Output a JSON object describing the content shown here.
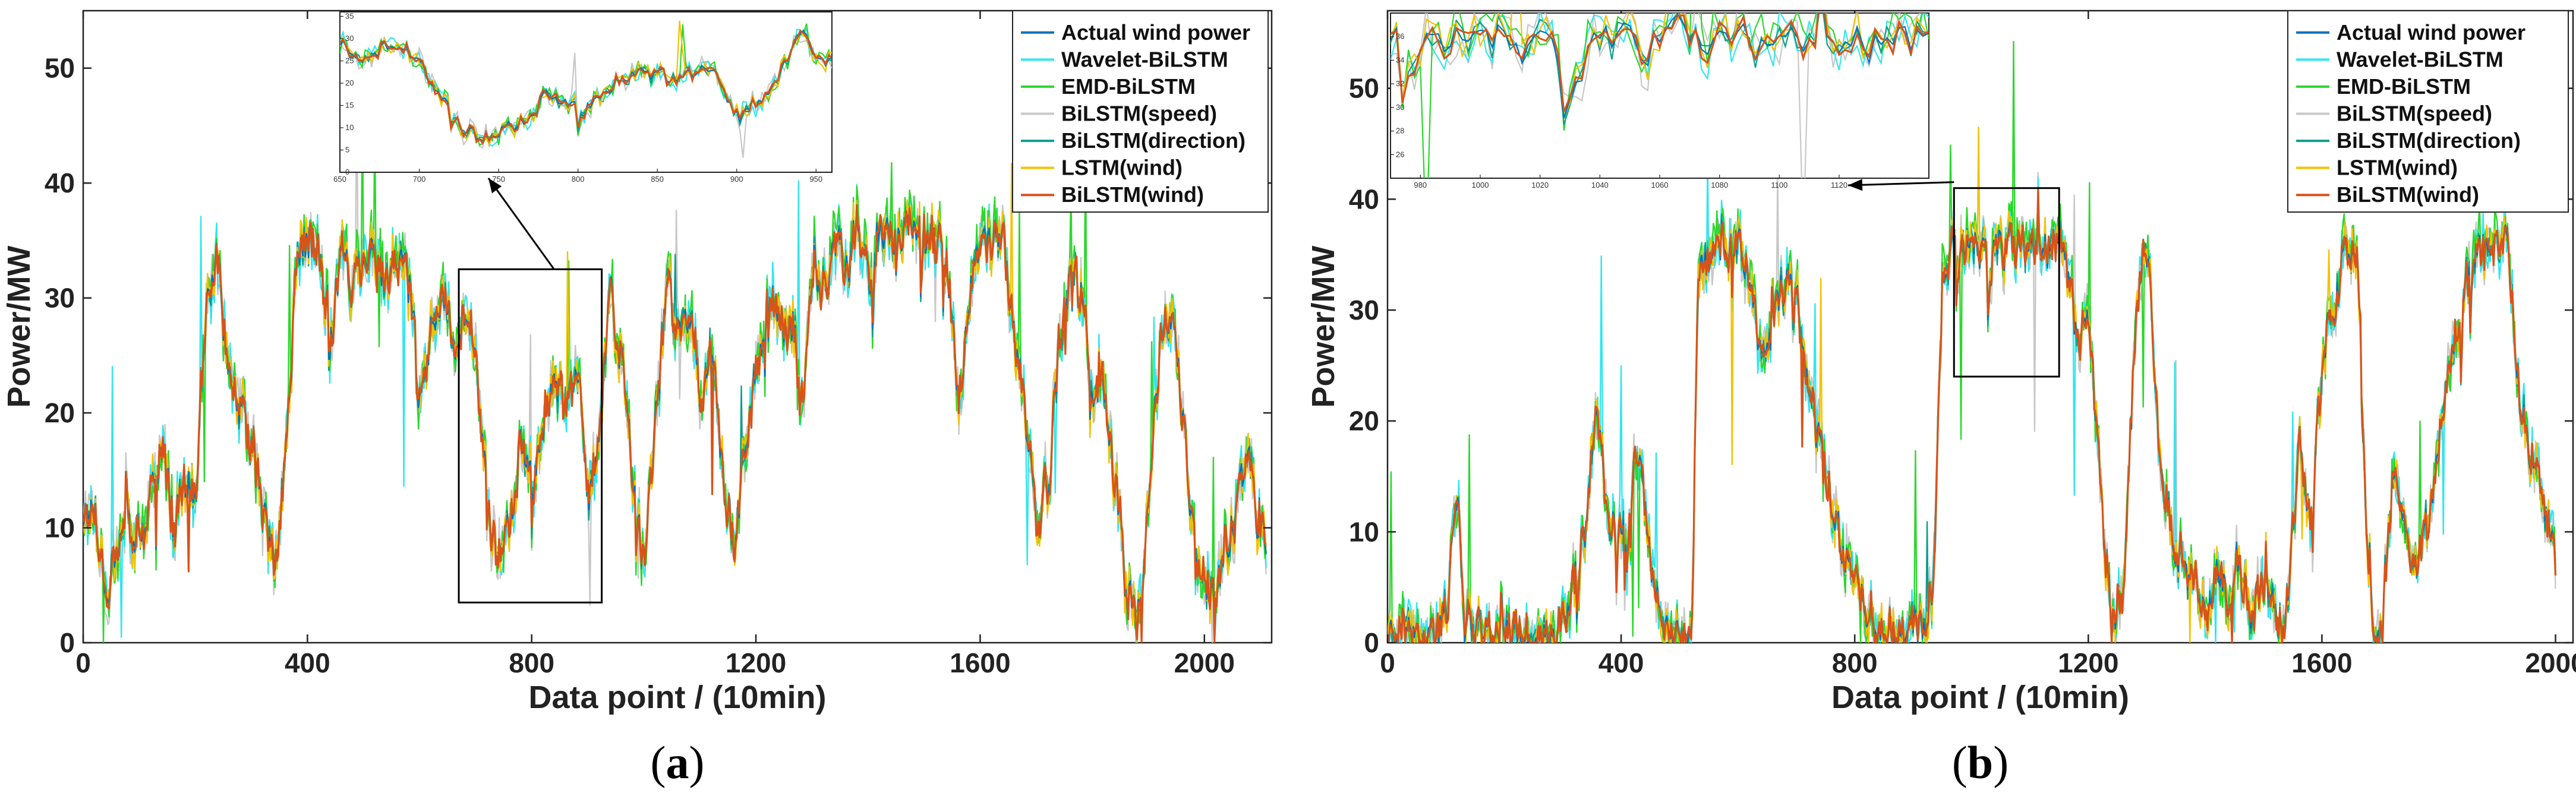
{
  "chart_data": [
    {
      "id": "a",
      "type": "line",
      "panel_label": "(a)",
      "panel_letter": "a",
      "xlabel": "Data point / (10min)",
      "ylabel": "Power/MW",
      "xlim": [
        0,
        2120
      ],
      "ylim": [
        0,
        55
      ],
      "xticks": [
        0,
        400,
        800,
        1200,
        1600,
        2000
      ],
      "yticks": [
        0,
        10,
        20,
        30,
        40,
        50
      ],
      "legend_position": "top-right",
      "zoom_box": {
        "x": [
          670,
          925
        ],
        "y": [
          3.5,
          32.5
        ]
      },
      "inset": {
        "xlim": [
          650,
          960
        ],
        "ylim": [
          0,
          36
        ],
        "xticks": [
          650,
          700,
          750,
          800,
          850,
          900,
          950
        ],
        "yticks": [
          0,
          5,
          10,
          15,
          20,
          25,
          30,
          35
        ]
      },
      "series": [
        {
          "name": "Actual wind power",
          "color": "#0072BD"
        },
        {
          "name": "Wavelet-BiLSTM",
          "color": "#33E5F0"
        },
        {
          "name": "EMD-BiLSTM",
          "color": "#2BD82B"
        },
        {
          "name": "BiLSTM(speed)",
          "color": "#C8C8C8"
        },
        {
          "name": "BiLSTM(direction)",
          "color": "#0C9F8C"
        },
        {
          "name": "LSTM(wind)",
          "color": "#F2C200"
        },
        {
          "name": "BiLSTM(wind)",
          "color": "#D95319"
        }
      ],
      "actual_profile": [
        [
          0,
          11
        ],
        [
          20,
          12
        ],
        [
          40,
          4
        ],
        [
          60,
          9
        ],
        [
          80,
          10
        ],
        [
          100,
          8
        ],
        [
          120,
          13
        ],
        [
          140,
          18
        ],
        [
          160,
          9
        ],
        [
          180,
          16
        ],
        [
          200,
          11
        ],
        [
          220,
          30
        ],
        [
          240,
          34
        ],
        [
          260,
          22
        ],
        [
          280,
          20
        ],
        [
          300,
          17
        ],
        [
          320,
          11
        ],
        [
          340,
          6
        ],
        [
          360,
          16
        ],
        [
          380,
          34
        ],
        [
          400,
          35
        ],
        [
          420,
          34
        ],
        [
          440,
          27
        ],
        [
          460,
          34
        ],
        [
          480,
          31
        ],
        [
          500,
          35
        ],
        [
          520,
          33
        ],
        [
          540,
          30
        ],
        [
          560,
          34
        ],
        [
          580,
          33
        ],
        [
          600,
          20
        ],
        [
          620,
          27
        ],
        [
          640,
          32
        ],
        [
          660,
          24
        ],
        [
          680,
          29
        ],
        [
          700,
          24
        ],
        [
          720,
          12
        ],
        [
          740,
          7
        ],
        [
          760,
          11
        ],
        [
          780,
          17
        ],
        [
          800,
          13
        ],
        [
          820,
          20
        ],
        [
          840,
          23
        ],
        [
          860,
          20
        ],
        [
          880,
          24
        ],
        [
          900,
          12
        ],
        [
          920,
          19
        ],
        [
          940,
          30
        ],
        [
          960,
          24
        ],
        [
          980,
          14
        ],
        [
          1000,
          7
        ],
        [
          1020,
          19
        ],
        [
          1040,
          32
        ],
        [
          1060,
          26
        ],
        [
          1080,
          29
        ],
        [
          1100,
          22
        ],
        [
          1120,
          26
        ],
        [
          1140,
          14
        ],
        [
          1160,
          9
        ],
        [
          1180,
          16
        ],
        [
          1200,
          24
        ],
        [
          1220,
          30
        ],
        [
          1240,
          29
        ],
        [
          1260,
          26
        ],
        [
          1280,
          20
        ],
        [
          1300,
          33
        ],
        [
          1320,
          30
        ],
        [
          1340,
          35
        ],
        [
          1360,
          33
        ],
        [
          1380,
          35
        ],
        [
          1400,
          32
        ],
        [
          1420,
          36
        ],
        [
          1440,
          35
        ],
        [
          1460,
          36
        ],
        [
          1480,
          35
        ],
        [
          1500,
          36
        ],
        [
          1520,
          35
        ],
        [
          1540,
          34
        ],
        [
          1560,
          20
        ],
        [
          1580,
          31
        ],
        [
          1600,
          35
        ],
        [
          1620,
          34
        ],
        [
          1640,
          35
        ],
        [
          1660,
          26
        ],
        [
          1680,
          20
        ],
        [
          1700,
          10
        ],
        [
          1720,
          14
        ],
        [
          1740,
          26
        ],
        [
          1760,
          33
        ],
        [
          1780,
          30
        ],
        [
          1800,
          20
        ],
        [
          1820,
          23
        ],
        [
          1840,
          14
        ],
        [
          1860,
          4
        ],
        [
          1880,
          2
        ],
        [
          1900,
          13
        ],
        [
          1920,
          26
        ],
        [
          1940,
          29
        ],
        [
          1960,
          20
        ],
        [
          1980,
          9
        ],
        [
          2000,
          6
        ],
        [
          2020,
          4
        ],
        [
          2040,
          9
        ],
        [
          2060,
          13
        ],
        [
          2080,
          15
        ],
        [
          2100,
          9
        ],
        [
          2110,
          9
        ]
      ]
    },
    {
      "id": "b",
      "type": "line",
      "panel_label": "(b)",
      "panel_letter": "b",
      "xlabel": "Data point / (10min)",
      "ylabel": "Power/MW",
      "xlim": [
        0,
        2030
      ],
      "ylim": [
        0,
        57
      ],
      "xticks": [
        0,
        400,
        800,
        1200,
        1600,
        2000
      ],
      "yticks": [
        0,
        10,
        20,
        30,
        40,
        50
      ],
      "legend_position": "top-right",
      "zoom_box": {
        "x": [
          970,
          1150
        ],
        "y": [
          24,
          41
        ]
      },
      "inset": {
        "xlim": [
          970,
          1150
        ],
        "ylim": [
          24,
          38
        ],
        "xticks": [
          980,
          1000,
          1020,
          1040,
          1060,
          1080,
          1100,
          1120
        ],
        "yticks": [
          26,
          28,
          30,
          32,
          34,
          36
        ]
      },
      "series": [
        {
          "name": "Actual wind power",
          "color": "#0072BD"
        },
        {
          "name": "Wavelet-BiLSTM",
          "color": "#33E5F0"
        },
        {
          "name": "EMD-BiLSTM",
          "color": "#2BD82B"
        },
        {
          "name": "BiLSTM(speed)",
          "color": "#C8C8C8"
        },
        {
          "name": "BiLSTM(direction)",
          "color": "#0C9F8C"
        },
        {
          "name": "LSTM(wind)",
          "color": "#F2C200"
        },
        {
          "name": "BiLSTM(wind)",
          "color": "#D95319"
        }
      ],
      "actual_profile": [
        [
          0,
          1
        ],
        [
          40,
          0
        ],
        [
          80,
          0
        ],
        [
          100,
          3
        ],
        [
          115,
          15
        ],
        [
          130,
          4
        ],
        [
          160,
          1
        ],
        [
          200,
          1
        ],
        [
          240,
          0
        ],
        [
          280,
          0
        ],
        [
          300,
          1
        ],
        [
          320,
          6
        ],
        [
          340,
          11
        ],
        [
          355,
          22
        ],
        [
          370,
          14
        ],
        [
          390,
          10
        ],
        [
          410,
          13
        ],
        [
          430,
          17
        ],
        [
          450,
          7
        ],
        [
          470,
          1
        ],
        [
          500,
          0
        ],
        [
          520,
          1
        ],
        [
          530,
          35
        ],
        [
          560,
          35
        ],
        [
          600,
          36
        ],
        [
          620,
          33
        ],
        [
          640,
          24
        ],
        [
          660,
          28
        ],
        [
          680,
          33
        ],
        [
          700,
          31
        ],
        [
          720,
          23
        ],
        [
          740,
          17
        ],
        [
          760,
          13
        ],
        [
          780,
          8
        ],
        [
          800,
          6
        ],
        [
          830,
          2
        ],
        [
          860,
          1
        ],
        [
          900,
          1
        ],
        [
          930,
          2
        ],
        [
          950,
          35
        ],
        [
          970,
          36
        ],
        [
          1000,
          36
        ],
        [
          1030,
          35
        ],
        [
          1060,
          36
        ],
        [
          1100,
          35
        ],
        [
          1140,
          36
        ],
        [
          1160,
          35
        ],
        [
          1180,
          26
        ],
        [
          1200,
          30
        ],
        [
          1220,
          14
        ],
        [
          1240,
          1
        ],
        [
          1260,
          6
        ],
        [
          1280,
          31
        ],
        [
          1300,
          36
        ],
        [
          1320,
          18
        ],
        [
          1340,
          10
        ],
        [
          1360,
          7
        ],
        [
          1380,
          5
        ],
        [
          1400,
          2
        ],
        [
          1420,
          6
        ],
        [
          1440,
          4
        ],
        [
          1460,
          6
        ],
        [
          1480,
          3
        ],
        [
          1500,
          5
        ],
        [
          1520,
          2
        ],
        [
          1540,
          3
        ],
        [
          1560,
          18
        ],
        [
          1580,
          10
        ],
        [
          1600,
          26
        ],
        [
          1620,
          31
        ],
        [
          1640,
          36
        ],
        [
          1660,
          35
        ],
        [
          1680,
          2
        ],
        [
          1700,
          1
        ],
        [
          1720,
          15
        ],
        [
          1740,
          10
        ],
        [
          1760,
          6
        ],
        [
          1780,
          11
        ],
        [
          1800,
          19
        ],
        [
          1820,
          26
        ],
        [
          1840,
          30
        ],
        [
          1860,
          36
        ],
        [
          1880,
          35
        ],
        [
          1900,
          36
        ],
        [
          1920,
          35
        ],
        [
          1940,
          20
        ],
        [
          1960,
          16
        ],
        [
          1980,
          12
        ],
        [
          2000,
          7
        ]
      ]
    }
  ]
}
